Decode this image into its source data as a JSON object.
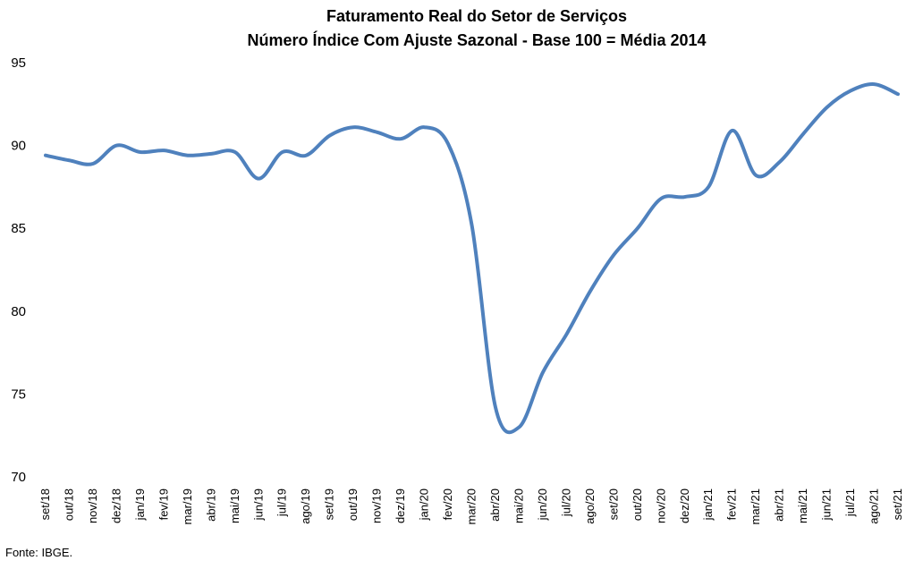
{
  "chart_data": {
    "type": "line",
    "title": "Faturamento Real do Setor de Serviços",
    "subtitle": "Número Índice Com Ajuste Sazonal - Base 100 = Média 2014",
    "xlabel": "",
    "ylabel": "",
    "ylim": [
      70,
      95
    ],
    "yticks": [
      70,
      75,
      80,
      85,
      90,
      95
    ],
    "grid": false,
    "legend": "none",
    "categories": [
      "set/18",
      "out/18",
      "nov/18",
      "dez/18",
      "jan/19",
      "fev/19",
      "mar/19",
      "abr/19",
      "mai/19",
      "jun/19",
      "jul/19",
      "ago/19",
      "set/19",
      "out/19",
      "nov/19",
      "dez/19",
      "jan/20",
      "fev/20",
      "mar/20",
      "abr/20",
      "mai/20",
      "jun/20",
      "jul/20",
      "ago/20",
      "set/20",
      "out/20",
      "nov/20",
      "dez/20",
      "jan/21",
      "fev/21",
      "mar/21",
      "abr/21",
      "mai/21",
      "jun/21",
      "jul/21",
      "ago/21",
      "set/21"
    ],
    "series": [
      {
        "color": "#4F81BD",
        "values": [
          89.4,
          89.1,
          88.9,
          90.0,
          89.6,
          89.7,
          89.4,
          89.5,
          89.6,
          88.0,
          89.6,
          89.4,
          90.6,
          91.1,
          90.8,
          90.4,
          91.1,
          90.1,
          85.2,
          74.2,
          73.0,
          76.3,
          78.6,
          81.2,
          83.4,
          85.0,
          86.8,
          86.9,
          87.5,
          90.9,
          88.2,
          89.0,
          90.7,
          92.3,
          93.3,
          93.7,
          93.1
        ]
      }
    ]
  },
  "footer": {
    "source": "Fonte: IBGE."
  }
}
